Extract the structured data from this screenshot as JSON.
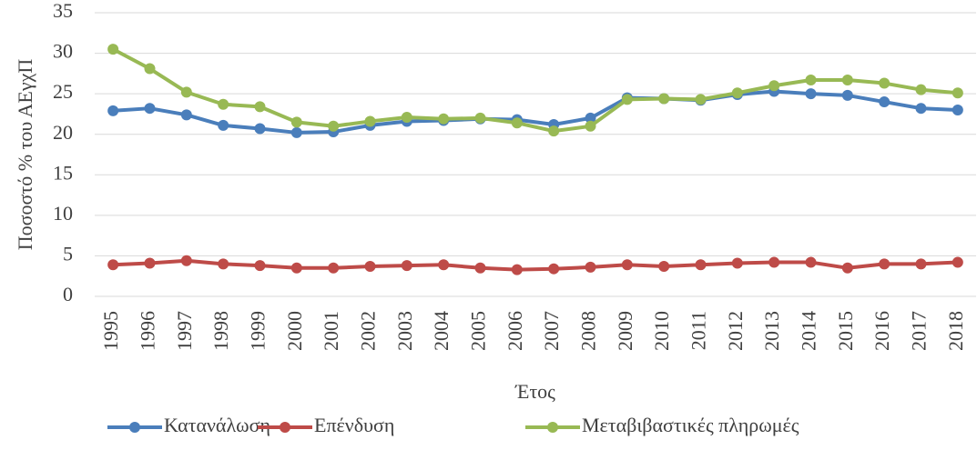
{
  "chart_data": {
    "type": "line",
    "y_label": "Ποσοστό % του ΑΕγχΠ",
    "x_label": "Έτος",
    "categories": [
      "1995",
      "1996",
      "1997",
      "1998",
      "1999",
      "2000",
      "2001",
      "2002",
      "2003",
      "2004",
      "2005",
      "2006",
      "2007",
      "2008",
      "2009",
      "2010",
      "2011",
      "2012",
      "2013",
      "2014",
      "2015",
      "2016",
      "2017",
      "2018"
    ],
    "series": [
      {
        "name": "Κατανάλωση",
        "color": "#4a7ebb",
        "values": [
          22.9,
          23.2,
          22.4,
          21.1,
          20.7,
          20.2,
          20.3,
          21.1,
          21.6,
          21.7,
          21.9,
          21.8,
          21.2,
          22.0,
          24.5,
          24.4,
          24.2,
          24.9,
          25.3,
          25.0,
          24.8,
          24.0,
          23.2,
          23.0
        ]
      },
      {
        "name": "Επένδυση",
        "color": "#be4b48",
        "values": [
          3.9,
          4.1,
          4.4,
          4.0,
          3.8,
          3.5,
          3.5,
          3.7,
          3.8,
          3.9,
          3.5,
          3.3,
          3.4,
          3.6,
          3.9,
          3.7,
          3.9,
          4.1,
          4.2,
          4.2,
          3.5,
          4.0,
          4.0,
          4.2
        ]
      },
      {
        "name": "Μεταβιβαστικές πληρωμές",
        "color": "#98b954",
        "values": [
          30.5,
          28.1,
          25.2,
          23.7,
          23.4,
          21.5,
          21.0,
          21.6,
          22.1,
          21.9,
          22.0,
          21.4,
          20.4,
          21.0,
          24.3,
          24.4,
          24.3,
          25.1,
          26.0,
          26.7,
          26.7,
          26.3,
          25.5,
          25.1
        ]
      }
    ],
    "ylim": [
      0,
      35
    ],
    "yticks": [
      0,
      5,
      10,
      15,
      20,
      25,
      30,
      35
    ],
    "grid": true,
    "legend": "bottom"
  }
}
